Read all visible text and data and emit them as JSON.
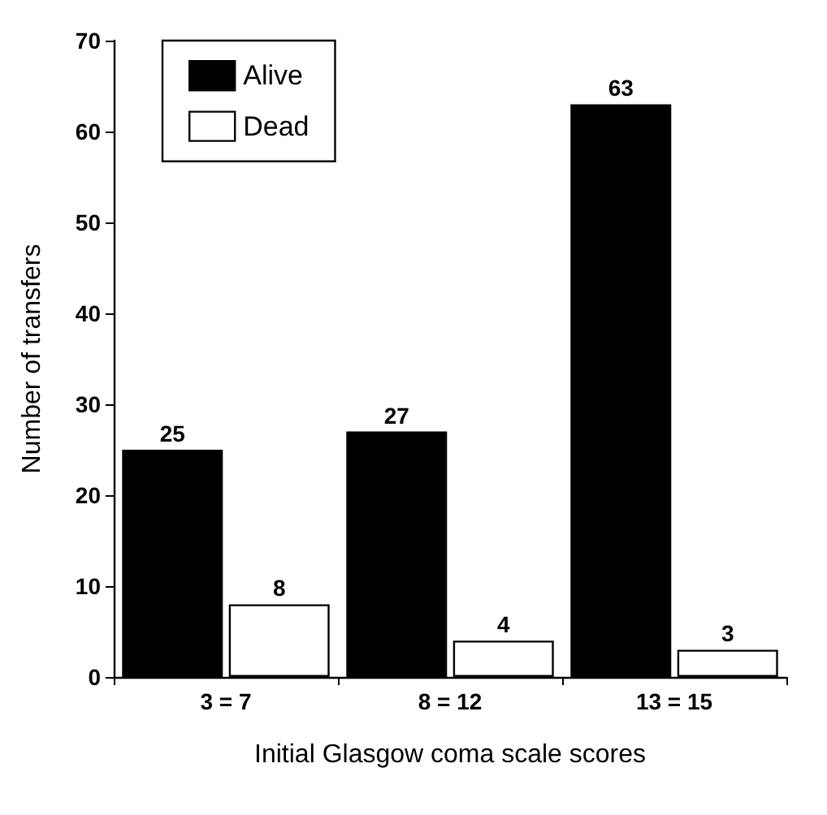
{
  "chart_data": {
    "type": "bar",
    "xlabel": "Initial Glasgow coma scale scores",
    "ylabel": "Number of transfers",
    "categories": [
      "3 = 7",
      "8 = 12",
      "13 = 15"
    ],
    "series": [
      {
        "name": "Alive",
        "color": "#000000",
        "values": [
          25,
          27,
          63
        ]
      },
      {
        "name": "Dead",
        "color": "#ffffff",
        "values": [
          8,
          4,
          3
        ]
      }
    ],
    "ylim": [
      0,
      70
    ],
    "yticks": [
      0,
      10,
      20,
      30,
      40,
      50,
      60,
      70
    ],
    "grid": false,
    "legend": "top left",
    "data_labels": true
  }
}
